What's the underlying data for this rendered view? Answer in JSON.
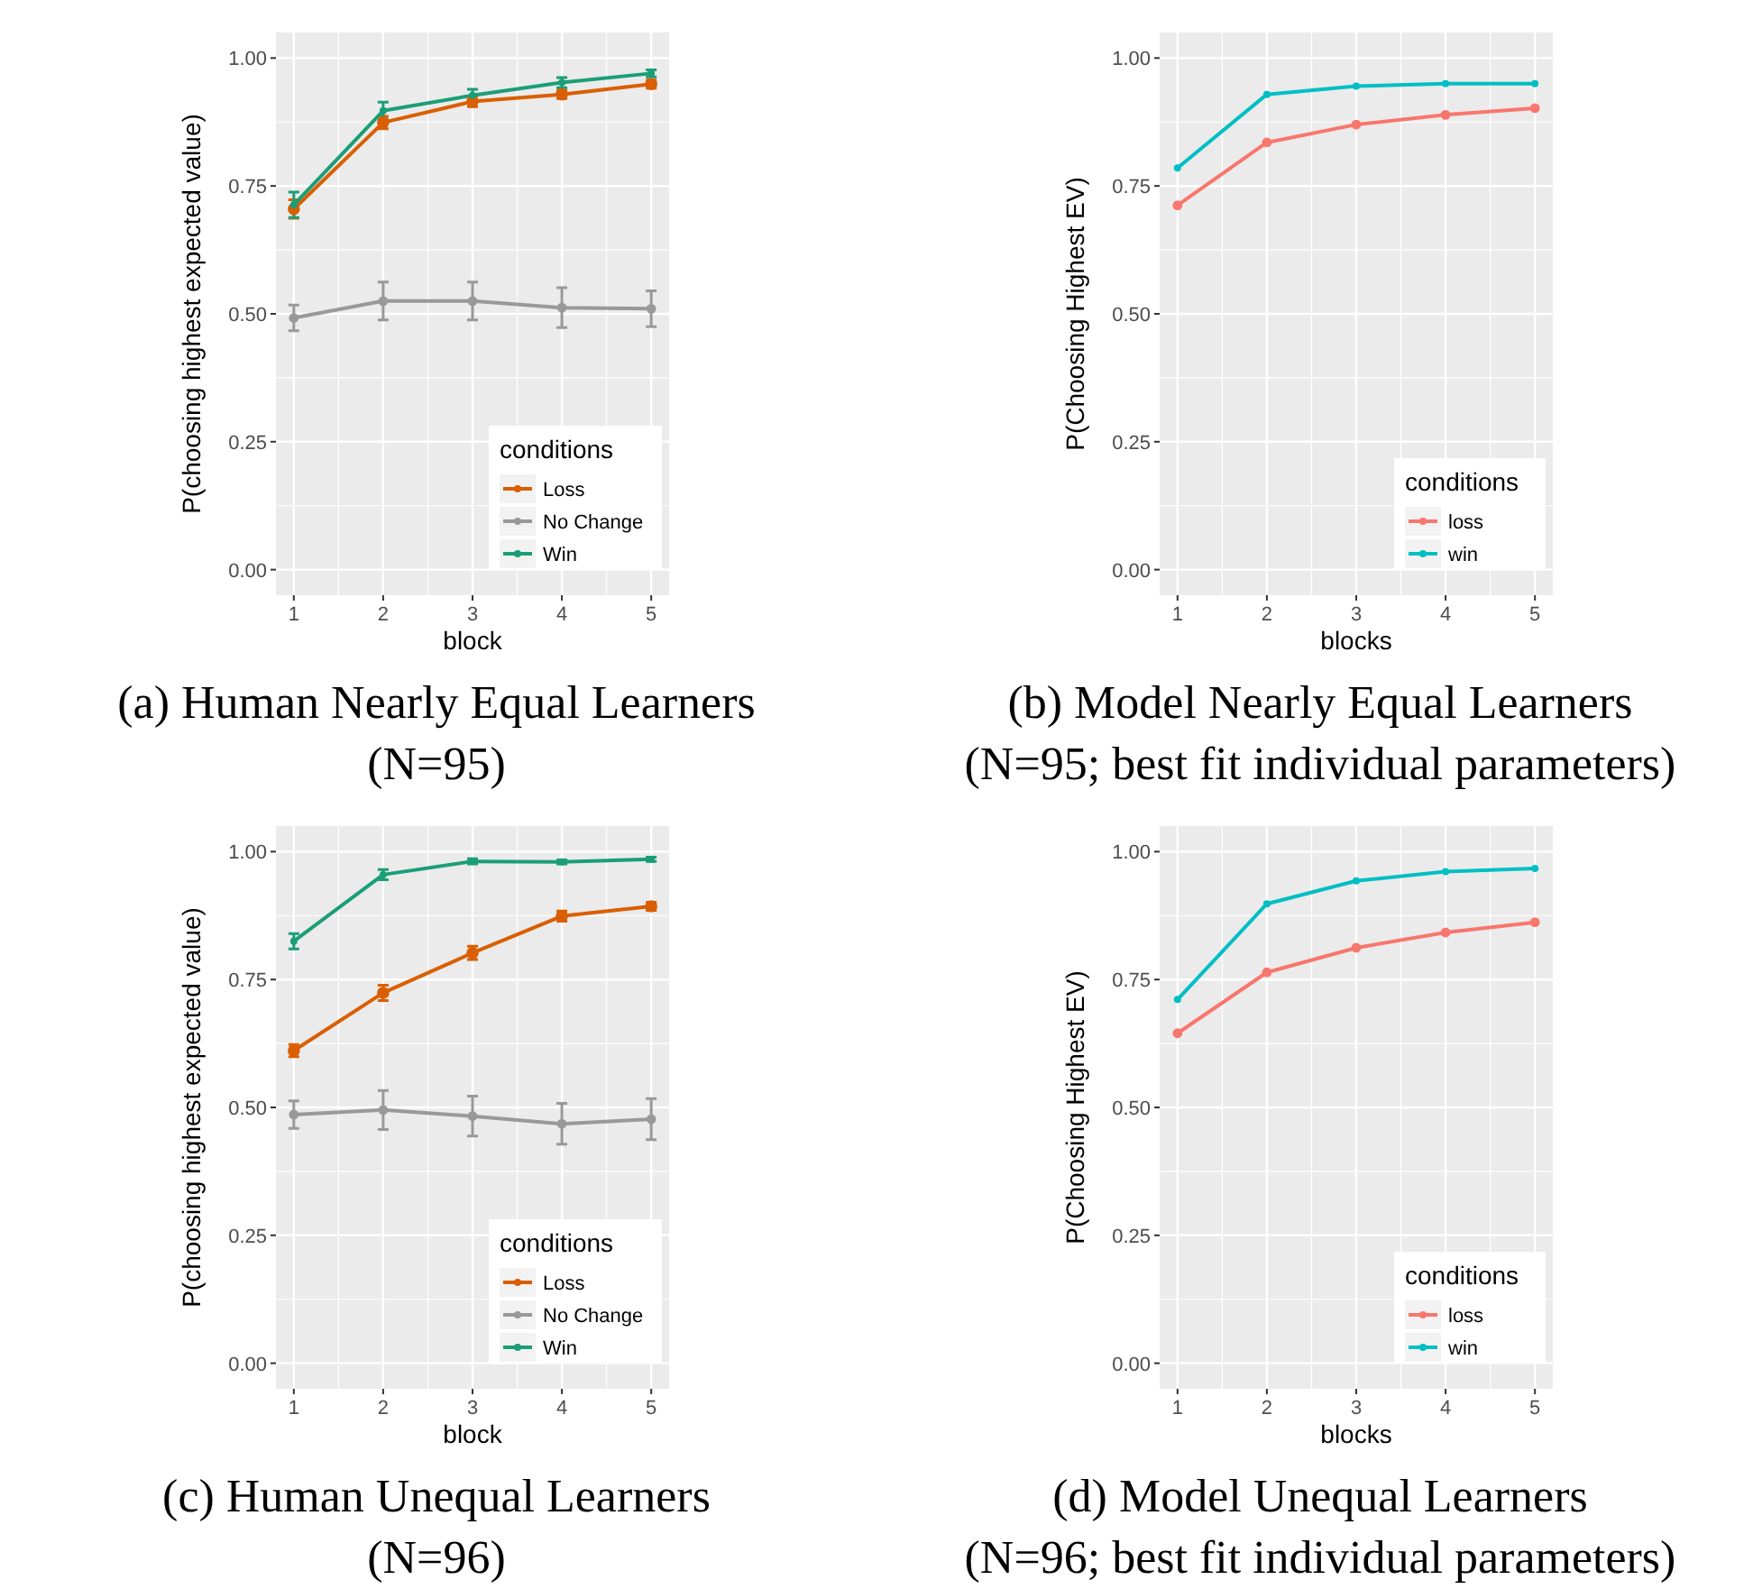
{
  "chart_data": [
    {
      "type": "line",
      "title": "(a) Human Nearly Equal Learners\n(N=95)",
      "xlabel": "block",
      "ylabel": "P(choosing highest expected value)",
      "legend_title": "conditions",
      "x": [
        1,
        2,
        3,
        4,
        5
      ],
      "xlim": [
        0.8,
        5.2
      ],
      "xticks": [
        1,
        2,
        3,
        4,
        5
      ],
      "ylim": [
        -0.05,
        1.05
      ],
      "yticks": [
        {
          "value": 0,
          "label": "0.00"
        },
        {
          "value": 0.25,
          "label": "0.25"
        },
        {
          "value": 0.5,
          "label": "0.50"
        },
        {
          "value": 0.75,
          "label": "0.75"
        },
        {
          "value": 1,
          "label": "1.00"
        }
      ],
      "grid": true,
      "legend": "bottom right",
      "marker": "circle",
      "series": [
        {
          "name": "Loss",
          "color": "#d95f02",
          "values": [
            0.705,
            0.874,
            0.915,
            0.929,
            0.949
          ],
          "errors": [
            0.018,
            0.012,
            0.01,
            0.008,
            0.008
          ]
        },
        {
          "name": "No Change",
          "color": "#999999",
          "values": [
            0.492,
            0.525,
            0.525,
            0.512,
            0.51
          ],
          "errors": [
            0.025,
            0.037,
            0.037,
            0.039,
            0.035
          ]
        },
        {
          "name": "Win",
          "color": "#1b9e77",
          "values": [
            0.713,
            0.897,
            0.927,
            0.952,
            0.97
          ],
          "errors": [
            0.025,
            0.017,
            0.012,
            0.01,
            0.007
          ]
        }
      ]
    },
    {
      "type": "line",
      "title": "(b) Model Nearly Equal Learners\n(N=95; best fit individual parameters)",
      "xlabel": "blocks",
      "ylabel": "P(Choosing Highest EV)",
      "legend_title": "conditions",
      "x": [
        1,
        2,
        3,
        4,
        5
      ],
      "xlim": [
        0.8,
        5.2
      ],
      "xticks": [
        1,
        2,
        3,
        4,
        5
      ],
      "ylim": [
        -0.05,
        1.05
      ],
      "yticks": [
        {
          "value": 0,
          "label": "0.00"
        },
        {
          "value": 0.25,
          "label": "0.25"
        },
        {
          "value": 0.5,
          "label": "0.50"
        },
        {
          "value": 0.75,
          "label": "0.75"
        },
        {
          "value": 1,
          "label": "1.00"
        }
      ],
      "grid": true,
      "legend": "bottom right",
      "marker": "circle",
      "series": [
        {
          "name": "loss",
          "color": "#f8766d",
          "values": [
            0.712,
            0.835,
            0.87,
            0.889,
            0.902
          ]
        },
        {
          "name": "win",
          "color": "#00bfc4",
          "values": [
            0.785,
            0.929,
            0.945,
            0.95,
            0.95
          ]
        }
      ]
    },
    {
      "type": "line",
      "title": "(c) Human Unequal Learners\n(N=96)",
      "xlabel": "block",
      "ylabel": "P(choosing highest expected value)",
      "legend_title": "conditions",
      "x": [
        1,
        2,
        3,
        4,
        5
      ],
      "xlim": [
        0.8,
        5.2
      ],
      "xticks": [
        1,
        2,
        3,
        4,
        5
      ],
      "ylim": [
        -0.05,
        1.05
      ],
      "yticks": [
        {
          "value": 0,
          "label": "0.00"
        },
        {
          "value": 0.25,
          "label": "0.25"
        },
        {
          "value": 0.5,
          "label": "0.50"
        },
        {
          "value": 0.75,
          "label": "0.75"
        },
        {
          "value": 1,
          "label": "1.00"
        }
      ],
      "grid": true,
      "legend": "bottom right",
      "marker": "circle",
      "series": [
        {
          "name": "Loss",
          "color": "#d95f02",
          "values": [
            0.611,
            0.724,
            0.802,
            0.874,
            0.893
          ],
          "errors": [
            0.012,
            0.015,
            0.013,
            0.01,
            0.008
          ]
        },
        {
          "name": "No Change",
          "color": "#999999",
          "values": [
            0.486,
            0.495,
            0.483,
            0.468,
            0.477
          ],
          "errors": [
            0.027,
            0.038,
            0.039,
            0.04,
            0.04
          ]
        },
        {
          "name": "Win",
          "color": "#1b9e77",
          "values": [
            0.825,
            0.955,
            0.981,
            0.98,
            0.985
          ],
          "errors": [
            0.015,
            0.01,
            0.005,
            0.004,
            0.004
          ]
        }
      ]
    },
    {
      "type": "line",
      "title": "(d) Model Unequal Learners\n(N=96; best fit individual parameters)",
      "xlabel": "blocks",
      "ylabel": "P(Choosing Highest EV)",
      "legend_title": "conditions",
      "x": [
        1,
        2,
        3,
        4,
        5
      ],
      "xlim": [
        0.8,
        5.2
      ],
      "xticks": [
        1,
        2,
        3,
        4,
        5
      ],
      "ylim": [
        -0.05,
        1.05
      ],
      "yticks": [
        {
          "value": 0,
          "label": "0.00"
        },
        {
          "value": 0.25,
          "label": "0.25"
        },
        {
          "value": 0.5,
          "label": "0.50"
        },
        {
          "value": 0.75,
          "label": "0.75"
        },
        {
          "value": 1,
          "label": "1.00"
        }
      ],
      "grid": true,
      "legend": "bottom right",
      "marker": "circle",
      "series": [
        {
          "name": "loss",
          "color": "#f8766d",
          "values": [
            0.645,
            0.764,
            0.812,
            0.842,
            0.862
          ]
        },
        {
          "name": "win",
          "color": "#00bfc4",
          "values": [
            0.711,
            0.898,
            0.943,
            0.961,
            0.967
          ]
        }
      ]
    }
  ]
}
